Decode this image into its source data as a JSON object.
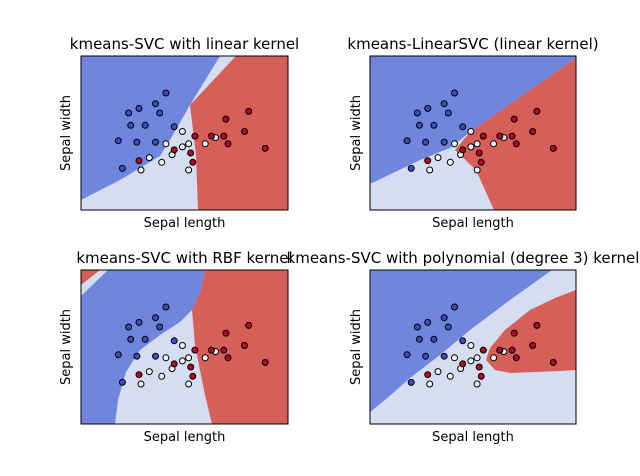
{
  "colors": {
    "blue_region": "#6f86dc",
    "light_region": "#d5ddf0",
    "red_region": "#d65f5a",
    "point_blue": "#3b4cc0",
    "point_light": "#ecf0f8",
    "point_red": "#b40426",
    "point_edge": "#000000",
    "axes_edge": "#000000"
  },
  "chart_data": [
    {
      "type": "scatter",
      "title": "kmeans-SVC with linear kernel",
      "xlabel": "Sepal length",
      "ylabel": "Sepal width",
      "ticks": "hidden",
      "regions": [
        "blue",
        "light",
        "red"
      ],
      "points": [
        {
          "x": 0.41,
          "y": 0.76,
          "class": "blue"
        },
        {
          "x": 0.36,
          "y": 0.69,
          "class": "blue"
        },
        {
          "x": 0.28,
          "y": 0.66,
          "class": "blue"
        },
        {
          "x": 0.23,
          "y": 0.63,
          "class": "blue"
        },
        {
          "x": 0.38,
          "y": 0.63,
          "class": "blue"
        },
        {
          "x": 0.24,
          "y": 0.55,
          "class": "blue"
        },
        {
          "x": 0.31,
          "y": 0.55,
          "class": "blue"
        },
        {
          "x": 0.45,
          "y": 0.54,
          "class": "blue"
        },
        {
          "x": 0.18,
          "y": 0.45,
          "class": "blue"
        },
        {
          "x": 0.27,
          "y": 0.44,
          "class": "blue"
        },
        {
          "x": 0.36,
          "y": 0.44,
          "class": "blue"
        },
        {
          "x": 0.2,
          "y": 0.27,
          "class": "blue"
        },
        {
          "x": 0.49,
          "y": 0.51,
          "class": "light"
        },
        {
          "x": 0.41,
          "y": 0.43,
          "class": "light"
        },
        {
          "x": 0.49,
          "y": 0.41,
          "class": "light"
        },
        {
          "x": 0.33,
          "y": 0.34,
          "class": "light"
        },
        {
          "x": 0.44,
          "y": 0.36,
          "class": "light"
        },
        {
          "x": 0.39,
          "y": 0.31,
          "class": "light"
        },
        {
          "x": 0.29,
          "y": 0.26,
          "class": "light"
        },
        {
          "x": 0.52,
          "y": 0.43,
          "class": "light"
        },
        {
          "x": 0.6,
          "y": 0.43,
          "class": "light"
        },
        {
          "x": 0.65,
          "y": 0.47,
          "class": "light"
        },
        {
          "x": 0.52,
          "y": 0.26,
          "class": "light"
        },
        {
          "x": 0.55,
          "y": 0.48,
          "class": "red"
        },
        {
          "x": 0.63,
          "y": 0.48,
          "class": "red"
        },
        {
          "x": 0.69,
          "y": 0.48,
          "class": "red"
        },
        {
          "x": 0.7,
          "y": 0.59,
          "class": "red"
        },
        {
          "x": 0.81,
          "y": 0.64,
          "class": "red"
        },
        {
          "x": 0.71,
          "y": 0.43,
          "class": "red"
        },
        {
          "x": 0.79,
          "y": 0.51,
          "class": "red"
        },
        {
          "x": 0.89,
          "y": 0.4,
          "class": "red"
        },
        {
          "x": 0.45,
          "y": 0.39,
          "class": "red"
        },
        {
          "x": 0.53,
          "y": 0.37,
          "class": "red"
        },
        {
          "x": 0.28,
          "y": 0.32,
          "class": "red"
        },
        {
          "x": 0.54,
          "y": 0.31,
          "class": "red"
        }
      ]
    },
    {
      "type": "scatter",
      "title": "kmeans-LinearSVC (linear kernel)",
      "xlabel": "Sepal length",
      "ylabel": "Sepal width",
      "ticks": "hidden",
      "regions": [
        "blue",
        "light",
        "red"
      ],
      "points": [
        {
          "x": 0.41,
          "y": 0.76,
          "class": "blue"
        },
        {
          "x": 0.36,
          "y": 0.69,
          "class": "blue"
        },
        {
          "x": 0.28,
          "y": 0.66,
          "class": "blue"
        },
        {
          "x": 0.23,
          "y": 0.63,
          "class": "blue"
        },
        {
          "x": 0.38,
          "y": 0.63,
          "class": "blue"
        },
        {
          "x": 0.24,
          "y": 0.55,
          "class": "blue"
        },
        {
          "x": 0.31,
          "y": 0.55,
          "class": "blue"
        },
        {
          "x": 0.45,
          "y": 0.54,
          "class": "blue"
        },
        {
          "x": 0.18,
          "y": 0.45,
          "class": "blue"
        },
        {
          "x": 0.27,
          "y": 0.44,
          "class": "blue"
        },
        {
          "x": 0.36,
          "y": 0.44,
          "class": "blue"
        },
        {
          "x": 0.2,
          "y": 0.27,
          "class": "blue"
        },
        {
          "x": 0.49,
          "y": 0.51,
          "class": "light"
        },
        {
          "x": 0.41,
          "y": 0.43,
          "class": "light"
        },
        {
          "x": 0.49,
          "y": 0.41,
          "class": "light"
        },
        {
          "x": 0.33,
          "y": 0.34,
          "class": "light"
        },
        {
          "x": 0.44,
          "y": 0.36,
          "class": "light"
        },
        {
          "x": 0.39,
          "y": 0.31,
          "class": "light"
        },
        {
          "x": 0.29,
          "y": 0.26,
          "class": "light"
        },
        {
          "x": 0.52,
          "y": 0.43,
          "class": "light"
        },
        {
          "x": 0.6,
          "y": 0.43,
          "class": "light"
        },
        {
          "x": 0.65,
          "y": 0.47,
          "class": "light"
        },
        {
          "x": 0.52,
          "y": 0.26,
          "class": "light"
        },
        {
          "x": 0.55,
          "y": 0.48,
          "class": "red"
        },
        {
          "x": 0.63,
          "y": 0.48,
          "class": "red"
        },
        {
          "x": 0.69,
          "y": 0.48,
          "class": "red"
        },
        {
          "x": 0.7,
          "y": 0.59,
          "class": "red"
        },
        {
          "x": 0.81,
          "y": 0.64,
          "class": "red"
        },
        {
          "x": 0.71,
          "y": 0.43,
          "class": "red"
        },
        {
          "x": 0.79,
          "y": 0.51,
          "class": "red"
        },
        {
          "x": 0.89,
          "y": 0.4,
          "class": "red"
        },
        {
          "x": 0.45,
          "y": 0.39,
          "class": "red"
        },
        {
          "x": 0.53,
          "y": 0.37,
          "class": "red"
        },
        {
          "x": 0.28,
          "y": 0.32,
          "class": "red"
        },
        {
          "x": 0.54,
          "y": 0.31,
          "class": "red"
        }
      ]
    },
    {
      "type": "scatter",
      "title": "kmeans-SVC with RBF kernel",
      "xlabel": "Sepal length",
      "ylabel": "Sepal width",
      "ticks": "hidden",
      "regions": [
        "blue",
        "light",
        "red"
      ],
      "points": [
        {
          "x": 0.41,
          "y": 0.76,
          "class": "blue"
        },
        {
          "x": 0.36,
          "y": 0.69,
          "class": "blue"
        },
        {
          "x": 0.28,
          "y": 0.66,
          "class": "blue"
        },
        {
          "x": 0.23,
          "y": 0.63,
          "class": "blue"
        },
        {
          "x": 0.38,
          "y": 0.63,
          "class": "blue"
        },
        {
          "x": 0.24,
          "y": 0.55,
          "class": "blue"
        },
        {
          "x": 0.31,
          "y": 0.55,
          "class": "blue"
        },
        {
          "x": 0.45,
          "y": 0.54,
          "class": "blue"
        },
        {
          "x": 0.18,
          "y": 0.45,
          "class": "blue"
        },
        {
          "x": 0.27,
          "y": 0.44,
          "class": "blue"
        },
        {
          "x": 0.36,
          "y": 0.44,
          "class": "blue"
        },
        {
          "x": 0.2,
          "y": 0.27,
          "class": "blue"
        },
        {
          "x": 0.49,
          "y": 0.51,
          "class": "light"
        },
        {
          "x": 0.41,
          "y": 0.43,
          "class": "light"
        },
        {
          "x": 0.49,
          "y": 0.41,
          "class": "light"
        },
        {
          "x": 0.33,
          "y": 0.34,
          "class": "light"
        },
        {
          "x": 0.44,
          "y": 0.36,
          "class": "light"
        },
        {
          "x": 0.39,
          "y": 0.31,
          "class": "light"
        },
        {
          "x": 0.29,
          "y": 0.26,
          "class": "light"
        },
        {
          "x": 0.52,
          "y": 0.43,
          "class": "light"
        },
        {
          "x": 0.6,
          "y": 0.43,
          "class": "light"
        },
        {
          "x": 0.65,
          "y": 0.47,
          "class": "light"
        },
        {
          "x": 0.52,
          "y": 0.26,
          "class": "light"
        },
        {
          "x": 0.55,
          "y": 0.48,
          "class": "red"
        },
        {
          "x": 0.63,
          "y": 0.48,
          "class": "red"
        },
        {
          "x": 0.69,
          "y": 0.48,
          "class": "red"
        },
        {
          "x": 0.7,
          "y": 0.59,
          "class": "red"
        },
        {
          "x": 0.81,
          "y": 0.64,
          "class": "red"
        },
        {
          "x": 0.71,
          "y": 0.43,
          "class": "red"
        },
        {
          "x": 0.79,
          "y": 0.51,
          "class": "red"
        },
        {
          "x": 0.89,
          "y": 0.4,
          "class": "red"
        },
        {
          "x": 0.45,
          "y": 0.39,
          "class": "red"
        },
        {
          "x": 0.53,
          "y": 0.37,
          "class": "red"
        },
        {
          "x": 0.28,
          "y": 0.32,
          "class": "red"
        },
        {
          "x": 0.54,
          "y": 0.31,
          "class": "red"
        }
      ]
    },
    {
      "type": "scatter",
      "title": "kmeans-SVC with polynomial (degree 3) kernel",
      "xlabel": "Sepal length",
      "ylabel": "Sepal width",
      "ticks": "hidden",
      "regions": [
        "blue",
        "light",
        "red"
      ],
      "points": [
        {
          "x": 0.41,
          "y": 0.76,
          "class": "blue"
        },
        {
          "x": 0.36,
          "y": 0.69,
          "class": "blue"
        },
        {
          "x": 0.28,
          "y": 0.66,
          "class": "blue"
        },
        {
          "x": 0.23,
          "y": 0.63,
          "class": "blue"
        },
        {
          "x": 0.38,
          "y": 0.63,
          "class": "blue"
        },
        {
          "x": 0.24,
          "y": 0.55,
          "class": "blue"
        },
        {
          "x": 0.31,
          "y": 0.55,
          "class": "blue"
        },
        {
          "x": 0.45,
          "y": 0.54,
          "class": "blue"
        },
        {
          "x": 0.18,
          "y": 0.45,
          "class": "blue"
        },
        {
          "x": 0.27,
          "y": 0.44,
          "class": "blue"
        },
        {
          "x": 0.36,
          "y": 0.44,
          "class": "blue"
        },
        {
          "x": 0.2,
          "y": 0.27,
          "class": "blue"
        },
        {
          "x": 0.49,
          "y": 0.51,
          "class": "light"
        },
        {
          "x": 0.41,
          "y": 0.43,
          "class": "light"
        },
        {
          "x": 0.49,
          "y": 0.41,
          "class": "light"
        },
        {
          "x": 0.33,
          "y": 0.34,
          "class": "light"
        },
        {
          "x": 0.44,
          "y": 0.36,
          "class": "light"
        },
        {
          "x": 0.39,
          "y": 0.31,
          "class": "light"
        },
        {
          "x": 0.29,
          "y": 0.26,
          "class": "light"
        },
        {
          "x": 0.52,
          "y": 0.43,
          "class": "light"
        },
        {
          "x": 0.6,
          "y": 0.43,
          "class": "light"
        },
        {
          "x": 0.65,
          "y": 0.47,
          "class": "light"
        },
        {
          "x": 0.52,
          "y": 0.26,
          "class": "light"
        },
        {
          "x": 0.55,
          "y": 0.48,
          "class": "red"
        },
        {
          "x": 0.63,
          "y": 0.48,
          "class": "red"
        },
        {
          "x": 0.69,
          "y": 0.48,
          "class": "red"
        },
        {
          "x": 0.7,
          "y": 0.59,
          "class": "red"
        },
        {
          "x": 0.81,
          "y": 0.64,
          "class": "red"
        },
        {
          "x": 0.71,
          "y": 0.43,
          "class": "red"
        },
        {
          "x": 0.79,
          "y": 0.51,
          "class": "red"
        },
        {
          "x": 0.89,
          "y": 0.4,
          "class": "red"
        },
        {
          "x": 0.45,
          "y": 0.39,
          "class": "red"
        },
        {
          "x": 0.53,
          "y": 0.37,
          "class": "red"
        },
        {
          "x": 0.28,
          "y": 0.32,
          "class": "red"
        },
        {
          "x": 0.54,
          "y": 0.31,
          "class": "red"
        }
      ]
    }
  ]
}
